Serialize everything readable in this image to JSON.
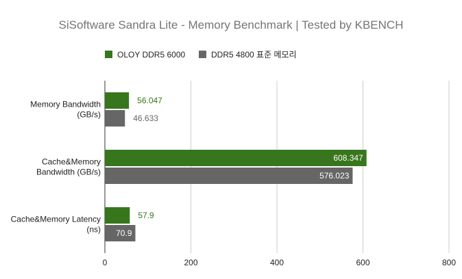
{
  "chart_data": {
    "type": "bar",
    "orientation": "horizontal",
    "title": "SiSoftware Sandra Lite - Memory Benchmark | Tested by KBENCH",
    "categories": [
      [
        "Memory Bandwidth",
        "(GB/s)"
      ],
      [
        "Cache&Memory",
        "Bandwidth (GB/s)"
      ],
      [
        "Cache&Memory Latency",
        "(ns)"
      ]
    ],
    "series": [
      {
        "name": "OLOY DDR5 6000",
        "color": "#38761d",
        "values": [
          56.047,
          608.347,
          57.9
        ],
        "labels": [
          "56.047",
          "608.347",
          "57.9"
        ]
      },
      {
        "name": "DDR5 4800 표준 메모리",
        "color": "#666666",
        "values": [
          46.633,
          576.023,
          70.9
        ],
        "labels": [
          "46.633",
          "576.023",
          "70.9"
        ]
      }
    ],
    "xlim": [
      0,
      800
    ],
    "xticks": [
      "0",
      "200",
      "400",
      "600",
      "800"
    ],
    "grid": true,
    "legend_position": "top"
  }
}
